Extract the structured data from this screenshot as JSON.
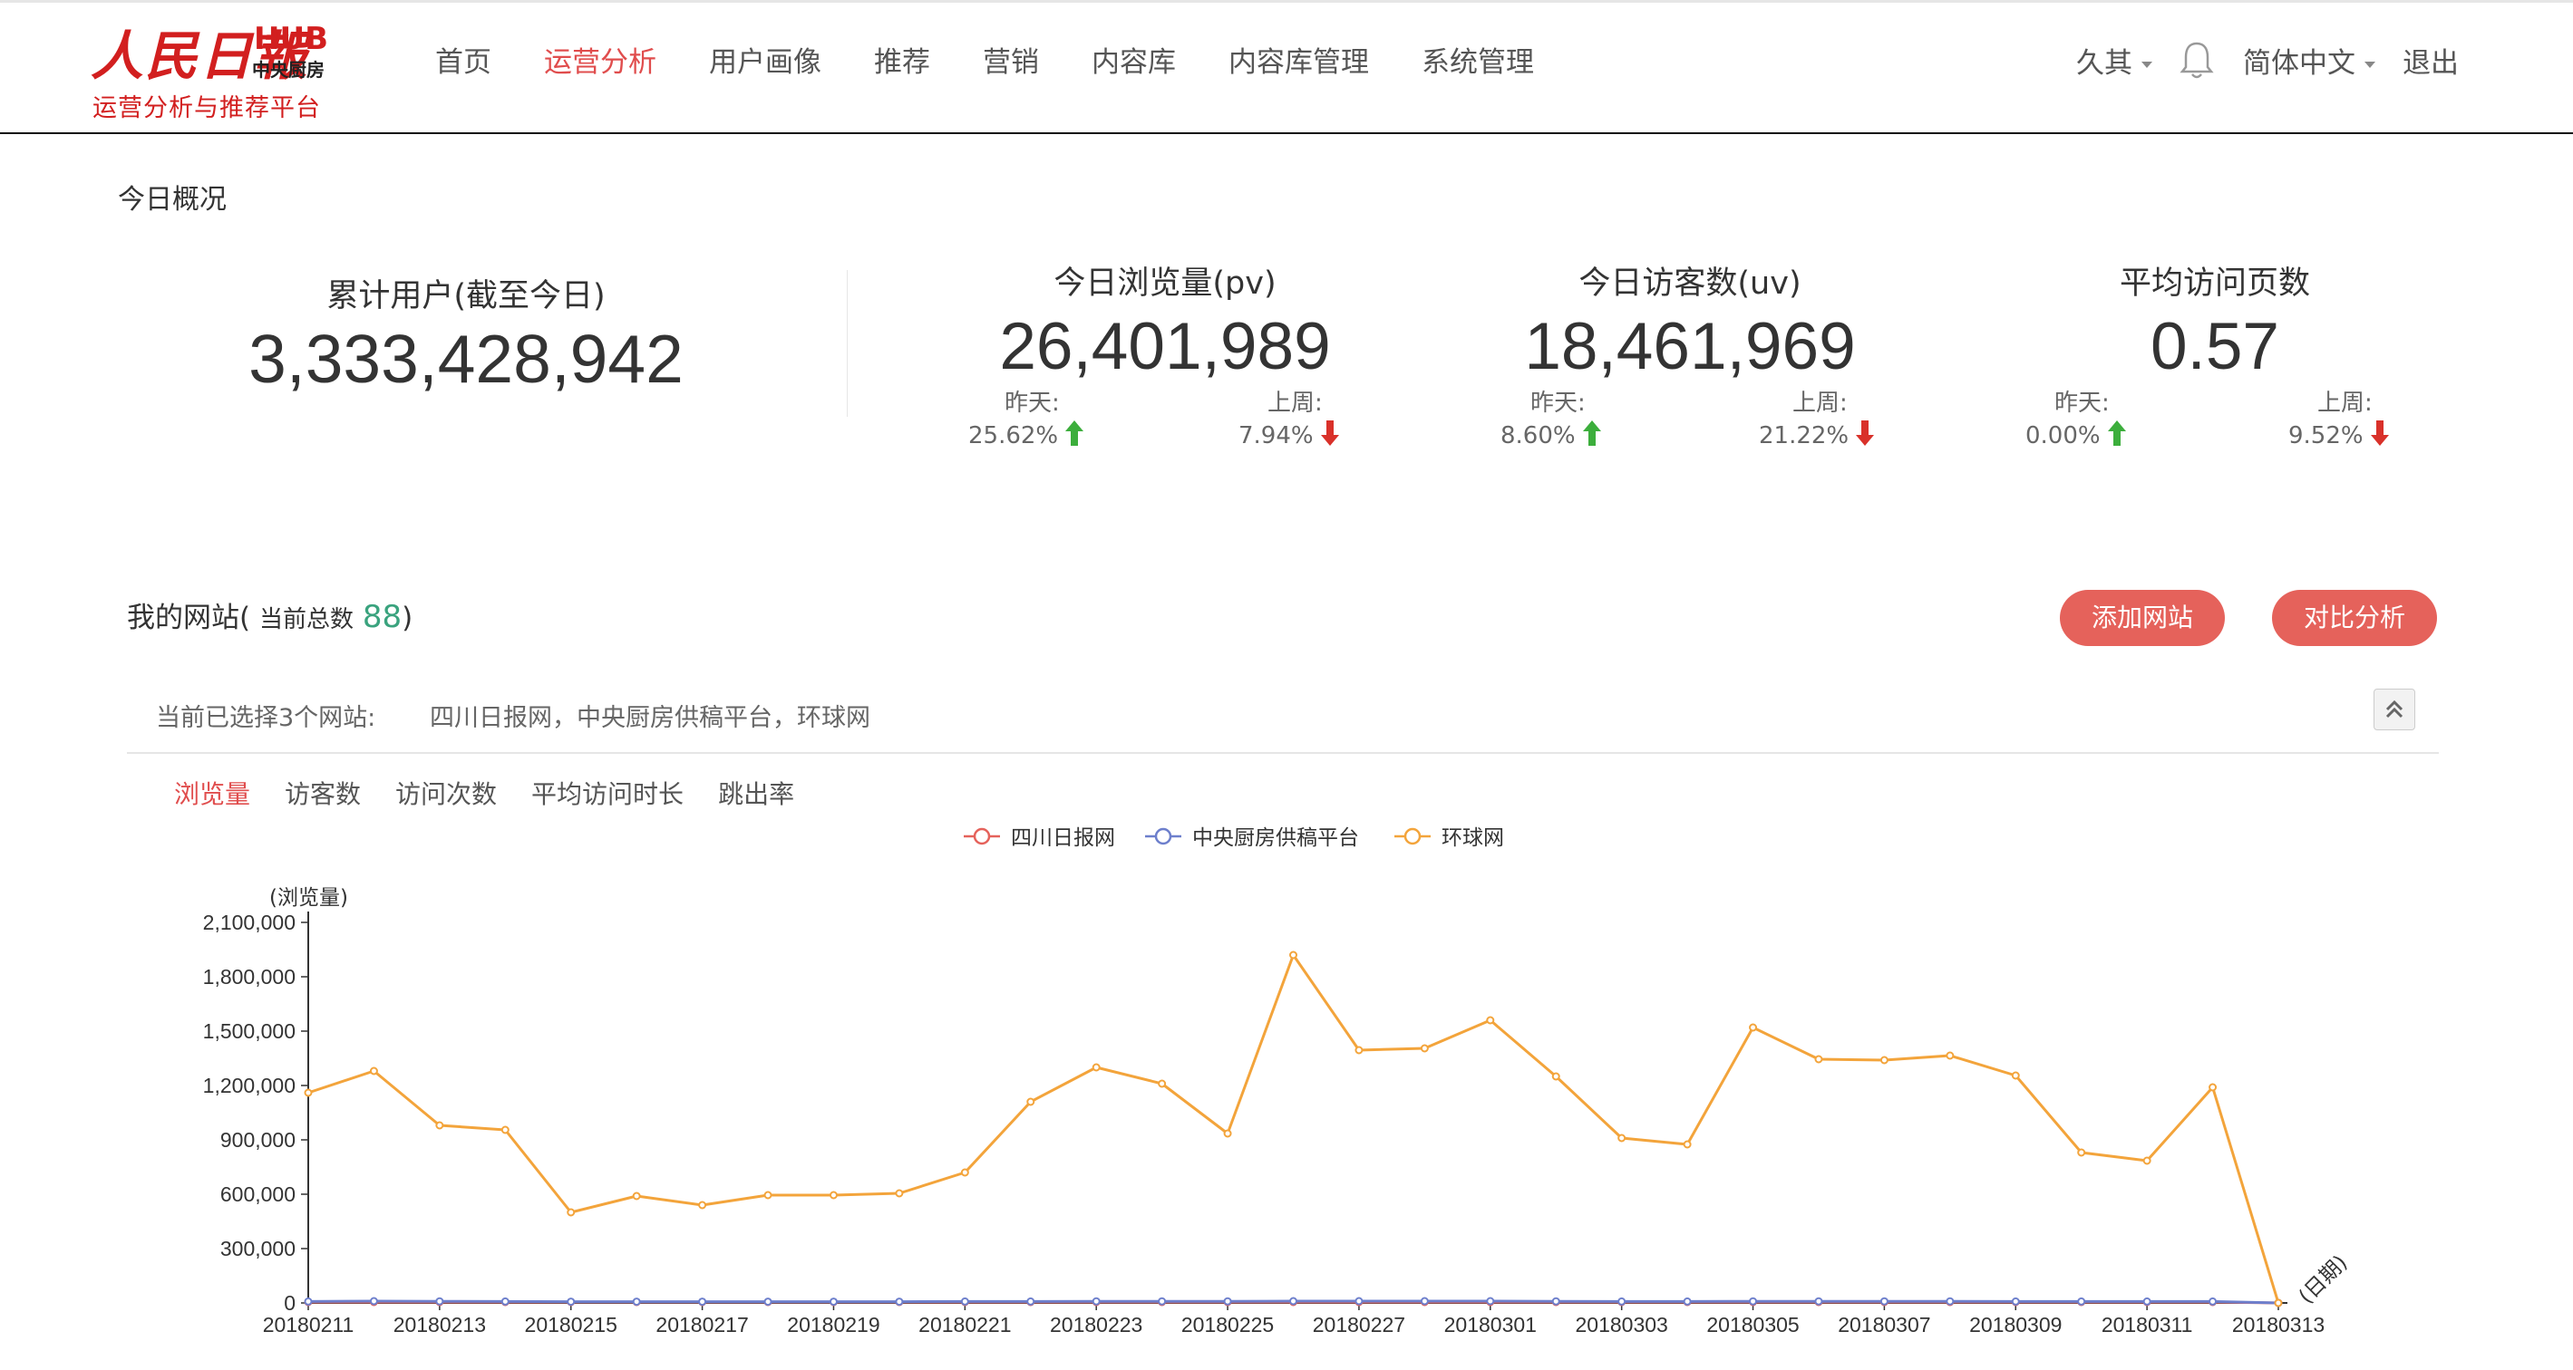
{
  "header": {
    "logo": {
      "main": "人民日報",
      "hub": "HUB",
      "hub_sub": "中央厨房",
      "subtitle": "运营分析与推荐平台"
    },
    "nav": [
      {
        "label": "首页",
        "active": false
      },
      {
        "label": "运营分析",
        "active": true
      },
      {
        "label": "用户画像",
        "active": false
      },
      {
        "label": "推荐",
        "active": false
      },
      {
        "label": "营销",
        "active": false
      },
      {
        "label": "内容库",
        "active": false
      },
      {
        "label": "内容库管理",
        "active": false
      },
      {
        "label": "系统管理",
        "active": false
      }
    ],
    "user": "久其",
    "language": "简体中文",
    "logout": "退出",
    "icons": {
      "notification": "bell-icon"
    }
  },
  "overview": {
    "title": "今日概况",
    "total_users": {
      "label": "累计用户(截至今日)",
      "value": "3,333,428,942"
    },
    "stats": [
      {
        "label": "今日浏览量(pv)",
        "value": "26,401,989",
        "yesterday_label": "昨天:",
        "yesterday": "25.62%",
        "yesterday_trend": "up",
        "lastweek_label": "上周:",
        "lastweek": "7.94%",
        "lastweek_trend": "down"
      },
      {
        "label": "今日访客数(uv)",
        "value": "18,461,969",
        "yesterday_label": "昨天:",
        "yesterday": "8.60%",
        "yesterday_trend": "up",
        "lastweek_label": "上周:",
        "lastweek": "21.22%",
        "lastweek_trend": "down"
      },
      {
        "label": "平均访问页数",
        "value": "0.57",
        "yesterday_label": "昨天:",
        "yesterday": "0.00%",
        "yesterday_trend": "up",
        "lastweek_label": "上周:",
        "lastweek": "9.52%",
        "lastweek_trend": "down"
      }
    ],
    "colors": {
      "up": "#3cae3c",
      "down": "#d9312a"
    }
  },
  "sites": {
    "title": "我的网站(",
    "count_label": "当前总数",
    "count": "88",
    "title_close": ")",
    "add_button": "添加网站",
    "compare_button": "对比分析",
    "selected_label": "当前已选择3个网站:",
    "selected_sites": "四川日报网，中央厨房供稿平台，环球网"
  },
  "metric_tabs": [
    {
      "label": "浏览量",
      "active": true
    },
    {
      "label": "访客数",
      "active": false
    },
    {
      "label": "访问次数",
      "active": false
    },
    {
      "label": "平均访问时长",
      "active": false
    },
    {
      "label": "跳出率",
      "active": false
    }
  ],
  "chart_data": {
    "type": "line",
    "ylabel": "(浏览量)",
    "xlabel": "(日期)",
    "ylim": [
      0,
      2100000
    ],
    "yticks": [
      "2,100,000",
      "1,800,000",
      "1,500,000",
      "1,200,000",
      "900,000",
      "600,000",
      "300,000",
      "0"
    ],
    "ytick_values": [
      2100000,
      1800000,
      1500000,
      1200000,
      900000,
      600000,
      300000,
      0
    ],
    "x": [
      "20180211",
      "20180212",
      "20180213",
      "20180214",
      "20180215",
      "20180216",
      "20180217",
      "20180218",
      "20180219",
      "20180220",
      "20180221",
      "20180222",
      "20180223",
      "20180224",
      "20180225",
      "20180226",
      "20180227",
      "20180228",
      "20180301",
      "20180302",
      "20180303",
      "20180304",
      "20180305",
      "20180306",
      "20180307",
      "20180308",
      "20180309",
      "20180310",
      "20180311",
      "20180312",
      "20180313"
    ],
    "xticks": [
      "20180211",
      "20180213",
      "20180215",
      "20180217",
      "20180219",
      "20180221",
      "20180223",
      "20180225",
      "20180227",
      "20180301",
      "20180303",
      "20180305",
      "20180307",
      "20180309",
      "20180311",
      "20180313"
    ],
    "legend_position": "top-center",
    "grid": false,
    "series": [
      {
        "name": "四川日报网",
        "color": "#e5625b",
        "values": [
          5000,
          5000,
          5000,
          5000,
          5000,
          5000,
          5000,
          5000,
          5000,
          5000,
          5000,
          5000,
          5000,
          5000,
          5000,
          5000,
          5000,
          5000,
          5000,
          5000,
          5000,
          5000,
          5000,
          5000,
          5000,
          5000,
          5000,
          5000,
          5000,
          5000,
          0
        ]
      },
      {
        "name": "中央厨房供稿平台",
        "color": "#6d7fcc",
        "values": [
          8000,
          10000,
          9000,
          8000,
          7000,
          7000,
          7000,
          7000,
          7000,
          7000,
          8000,
          8000,
          9000,
          9000,
          9000,
          10000,
          10000,
          10000,
          10000,
          9000,
          8000,
          8000,
          9000,
          9000,
          9000,
          9000,
          8000,
          8000,
          8000,
          8000,
          0
        ]
      },
      {
        "name": "环球网",
        "color": "#f3a43b",
        "values": [
          1160000,
          1280000,
          980000,
          955000,
          500000,
          590000,
          540000,
          595000,
          595000,
          605000,
          720000,
          1110000,
          1300000,
          1210000,
          935000,
          1920000,
          1395000,
          1405000,
          1560000,
          1250000,
          910000,
          875000,
          1520000,
          1345000,
          1340000,
          1365000,
          1255000,
          830000,
          785000,
          1190000,
          0
        ]
      }
    ]
  }
}
